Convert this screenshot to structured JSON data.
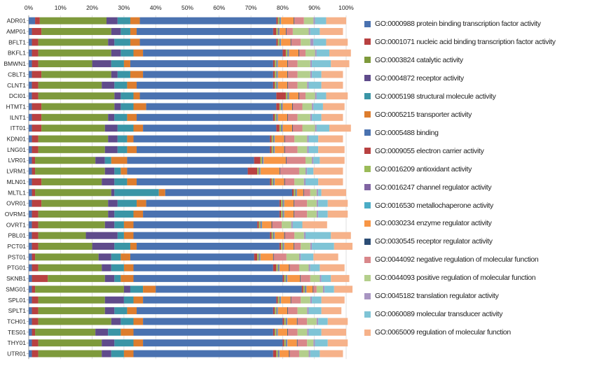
{
  "chart_data": {
    "type": "bar",
    "orientation": "horizontal",
    "stacked": "percent",
    "xlim": [
      0,
      100
    ],
    "x_ticks": [
      "0%",
      "10%",
      "20%",
      "30%",
      "40%",
      "50%",
      "60%",
      "70%",
      "80%",
      "90%",
      "100%"
    ],
    "grid": true,
    "legend_position": "right",
    "categories": [
      "ADR01",
      "AMP01",
      "BFLT1",
      "BKFL1",
      "BMWN1",
      "CBLT1",
      "CLNT1",
      "DCI01",
      "HTMT1",
      "ILNT1",
      "ITT01",
      "KDN01",
      "LNG01",
      "LVR01",
      "LVRM1",
      "MLN01",
      "MLTL1",
      "OVR01",
      "OVRM1",
      "OVRT1",
      "PBL01",
      "PCT01",
      "PST01",
      "PTG01",
      "SKNB1",
      "SMG01",
      "SPL01",
      "SPLT1",
      "TCH01",
      "TES01",
      "THY01",
      "UTR01"
    ],
    "series": [
      {
        "name": "GO:0000988 protein binding transcription factor activity",
        "color": "#4a72b0",
        "values": [
          2,
          1,
          1,
          1,
          1,
          1,
          1,
          1,
          1,
          1,
          1,
          1,
          1,
          1,
          1,
          1,
          1,
          1,
          1,
          1,
          1,
          1,
          1,
          1,
          1,
          1,
          1,
          1,
          1,
          1,
          1,
          1
        ]
      },
      {
        "name": "GO:0001071 nucleic acid binding transcription factor activity",
        "color": "#b84141",
        "values": [
          1.5,
          3,
          2,
          2,
          2,
          3,
          2,
          2,
          3,
          3,
          3,
          2,
          2,
          1,
          1,
          3,
          1,
          3,
          2,
          2,
          2,
          2,
          1,
          2,
          5,
          1,
          2,
          2,
          2,
          1,
          2,
          2
        ]
      },
      {
        "name": "GO:0003824 catalytic activity",
        "color": "#7e9a3c",
        "values": [
          21,
          22,
          22,
          23,
          17,
          22,
          20,
          24,
          23,
          21,
          20,
          22,
          21,
          19,
          22,
          19,
          24,
          21,
          22,
          21,
          15,
          17,
          20,
          20,
          18,
          28,
          21,
          21,
          23,
          19,
          20,
          20
        ]
      },
      {
        "name": "GO:0004872 receptor activity",
        "color": "#5f4b8b",
        "values": [
          3.5,
          3,
          2,
          3,
          6,
          2,
          4,
          2,
          2,
          2,
          4,
          3,
          4,
          3,
          3,
          4,
          1,
          3,
          2,
          3,
          10,
          7,
          4,
          3,
          3,
          2,
          6,
          3,
          3,
          4,
          4,
          3
        ]
      },
      {
        "name": "GO:0005198 structural molecule activity",
        "color": "#3a95a6",
        "values": [
          4,
          3,
          5,
          4,
          4,
          4,
          4,
          4,
          4,
          4,
          5,
          3,
          3,
          2,
          2,
          4,
          14,
          6,
          6,
          3,
          2,
          5,
          3,
          4,
          2,
          4,
          3,
          4,
          4,
          4,
          6,
          4
        ]
      },
      {
        "name": "GO:0005215 transporter activity",
        "color": "#dd7d2e",
        "values": [
          3,
          2,
          3,
          3,
          2,
          4,
          3,
          2,
          4,
          3,
          3,
          2,
          3,
          5,
          2,
          3,
          2,
          3,
          3,
          3,
          3,
          2,
          3,
          3,
          4,
          4,
          3,
          3,
          3,
          4,
          3,
          3
        ]
      },
      {
        "name": "GO:0005488 binding",
        "color": "#4a72b0",
        "values": [
          43,
          43,
          43,
          44,
          45,
          41,
          43,
          43,
          41,
          43,
          42,
          43,
          42,
          40,
          38,
          42,
          40,
          42,
          43,
          39,
          43,
          45,
          39,
          44,
          47,
          46,
          42,
          43,
          44,
          44,
          44,
          44
        ]
      },
      {
        "name": "GO:0009055 electron carrier activity",
        "color": "#b84141",
        "values": [
          0.5,
          1,
          0.5,
          1,
          0.5,
          0.5,
          0.5,
          3,
          1,
          0.5,
          1,
          0.5,
          0.5,
          2,
          3,
          0.5,
          0.5,
          0.5,
          0.5,
          0.5,
          0.5,
          0.5,
          1,
          1,
          0.5,
          0.5,
          0.5,
          0.5,
          0.5,
          0.5,
          0.5,
          1
        ]
      },
      {
        "name": "GO:0016209 antioxidant activity",
        "color": "#9bbb59",
        "values": [
          0.5,
          0.5,
          0.5,
          0.5,
          0.5,
          0.5,
          0.5,
          0.5,
          0.5,
          0.5,
          0.5,
          0.5,
          0.5,
          0.5,
          0.5,
          0.5,
          0.5,
          0.5,
          0.5,
          0.5,
          0.5,
          0.5,
          0.5,
          0.5,
          0.5,
          0.5,
          0.5,
          0.5,
          0.5,
          0.5,
          0.5,
          0.5
        ]
      },
      {
        "name": "GO:0016247 channel regulator activity",
        "color": "#8064a2",
        "values": [
          0.3,
          0.3,
          0.3,
          0.3,
          0.3,
          0.3,
          0.3,
          0.3,
          0.3,
          0.3,
          0.3,
          0.3,
          0.3,
          0.3,
          0.3,
          0.3,
          0.3,
          0.3,
          0.3,
          0.3,
          0.3,
          0.3,
          0.3,
          0.3,
          0.3,
          0.3,
          0.3,
          0.3,
          0.3,
          0.3,
          0.3,
          0.3
        ]
      },
      {
        "name": "GO:0016530 metallochaperone activity",
        "color": "#4bacc6",
        "values": [
          0.2,
          0.2,
          0.2,
          0.2,
          0.2,
          0.2,
          0.2,
          0.2,
          0.2,
          0.2,
          0.2,
          0.2,
          0.2,
          0.2,
          0.2,
          0.2,
          0.2,
          0.2,
          0.2,
          0.2,
          0.2,
          0.2,
          0.2,
          0.2,
          0.2,
          0.2,
          0.2,
          0.2,
          0.2,
          0.2,
          0.2,
          0.2
        ]
      },
      {
        "name": "GO:0030234 enzyme regulator activity",
        "color": "#f79646",
        "values": [
          4,
          2,
          3,
          3,
          3,
          3,
          3,
          3,
          3,
          3,
          3,
          3,
          3,
          7,
          6,
          3,
          2,
          3,
          3,
          3,
          3,
          3,
          4,
          3,
          4,
          2,
          3,
          3,
          3,
          3,
          3,
          3
        ]
      },
      {
        "name": "GO:0030545 receptor regulator activity",
        "color": "#2c4d75",
        "values": [
          0.2,
          0.2,
          0.2,
          0.2,
          0.2,
          0.2,
          0.2,
          0.2,
          0.2,
          0.2,
          0.2,
          0.2,
          0.2,
          0.2,
          0.2,
          0.2,
          0.2,
          0.2,
          0.2,
          0.2,
          0.2,
          0.2,
          0.2,
          0.2,
          0.2,
          0.2,
          0.2,
          0.2,
          0.2,
          0.2,
          0.2,
          0.2
        ]
      },
      {
        "name": "GO:0044092 negative regulation of molecular function",
        "color": "#d9878a",
        "values": [
          3,
          2,
          3,
          2,
          3,
          3,
          3,
          2,
          3,
          3,
          3,
          3,
          4,
          6,
          6,
          3,
          2,
          4,
          4,
          3,
          3,
          2,
          4,
          3,
          3,
          1,
          3,
          3,
          3,
          3,
          3,
          3
        ]
      },
      {
        "name": "GO:0044093 positive regulation of molecular function",
        "color": "#b4cf8c",
        "values": [
          3,
          5,
          3,
          3,
          4,
          4,
          3,
          3,
          3,
          4,
          4,
          4,
          3,
          2,
          2,
          3,
          2,
          3,
          3,
          3,
          3,
          3,
          4,
          3,
          3,
          2,
          3,
          3,
          3,
          3,
          2,
          3
        ]
      },
      {
        "name": "GO:0045182 translation regulator activity",
        "color": "#a895c2",
        "values": [
          0.5,
          0.5,
          1,
          0.5,
          0.5,
          0.5,
          0.5,
          0.5,
          0.5,
          0.5,
          0.5,
          0.5,
          0.5,
          0.5,
          0.5,
          0.5,
          0.5,
          0.5,
          0.5,
          0.5,
          0.5,
          0.5,
          0.5,
          0.5,
          0.5,
          0.5,
          0.5,
          0.5,
          0.5,
          0.5,
          0.5,
          0.5
        ]
      },
      {
        "name": "GO:0060089 molecular transducer activity",
        "color": "#7fc4d6",
        "values": [
          3.5,
          3,
          4,
          4,
          6,
          3,
          4,
          3,
          3,
          3,
          4,
          3,
          3,
          2,
          2,
          4,
          1,
          3,
          3,
          3,
          8,
          7,
          4,
          3,
          3,
          3,
          3,
          4,
          3,
          4,
          4,
          3
        ]
      },
      {
        "name": "GO:0065009 regulation of molecular function",
        "color": "#f6b28a",
        "values": [
          6.3,
          7.3,
          6.8,
          6.8,
          5.8,
          6.8,
          6.8,
          6.8,
          6.8,
          6.8,
          6.8,
          7.8,
          8.3,
          7.8,
          9.3,
          7.8,
          7.8,
          6.3,
          6.3,
          7.8,
          6.3,
          5.8,
          7.8,
          7.8,
          5.8,
          5.8,
          7.3,
          6.3,
          6.3,
          7.8,
          6.3,
          7.3
        ]
      }
    ]
  }
}
